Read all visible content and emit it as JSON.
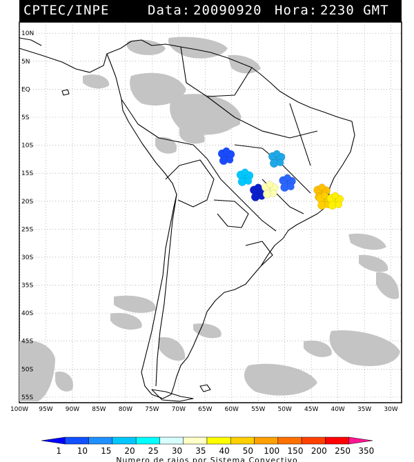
{
  "header": {
    "source": "CPTEC/INPE",
    "date_label": "Data:",
    "date": "20090920",
    "time_label": "Hora:",
    "time": "2230 GMT"
  },
  "map": {
    "lat_labels": [
      "10N",
      "5N",
      "EQ",
      "5S",
      "10S",
      "15S",
      "20S",
      "25S",
      "30S",
      "35S",
      "40S",
      "45S",
      "50S",
      "55S"
    ],
    "lon_labels": [
      "100W",
      "95W",
      "90W",
      "85W",
      "80W",
      "75W",
      "70W",
      "65W",
      "60W",
      "55W",
      "50W",
      "45W",
      "40W",
      "35W",
      "30W"
    ],
    "colors": {
      "background": "#ffffff",
      "cloud": "#c4c4c4",
      "coastline": "#000000",
      "grid": "#888888"
    },
    "lightning_clusters": [
      {
        "lon": -61.0,
        "lat": -12.0,
        "color": "#1a4cff"
      },
      {
        "lon": -57.5,
        "lat": -15.8,
        "color": "#00c8ff"
      },
      {
        "lon": -51.5,
        "lat": -12.5,
        "color": "#1fa8e8"
      },
      {
        "lon": -55.0,
        "lat": -18.5,
        "color": "#0a1ecc"
      },
      {
        "lon": -52.8,
        "lat": -18.0,
        "color": "#ffffb0"
      },
      {
        "lon": -49.5,
        "lat": -16.8,
        "color": "#2a66ff"
      },
      {
        "lon": -43.0,
        "lat": -18.5,
        "color": "#ffc000"
      },
      {
        "lon": -42.5,
        "lat": -20.0,
        "color": "#ffd000"
      },
      {
        "lon": -40.5,
        "lat": -20.0,
        "color": "#fff000"
      }
    ]
  },
  "legend": {
    "labels": [
      "1",
      "10",
      "15",
      "20",
      "25",
      "30",
      "35",
      "40",
      "50",
      "100",
      "150",
      "200",
      "250",
      "350"
    ],
    "colors": [
      "#0000ff",
      "#1050ff",
      "#1e90ff",
      "#00c8ff",
      "#00ffff",
      "#d8ffff",
      "#ffffc8",
      "#ffff00",
      "#ffd000",
      "#ffa000",
      "#ff7000",
      "#ff4000",
      "#ff0000",
      "#ff1493"
    ],
    "title": "Numero de raios por Sistema Convectivo"
  }
}
